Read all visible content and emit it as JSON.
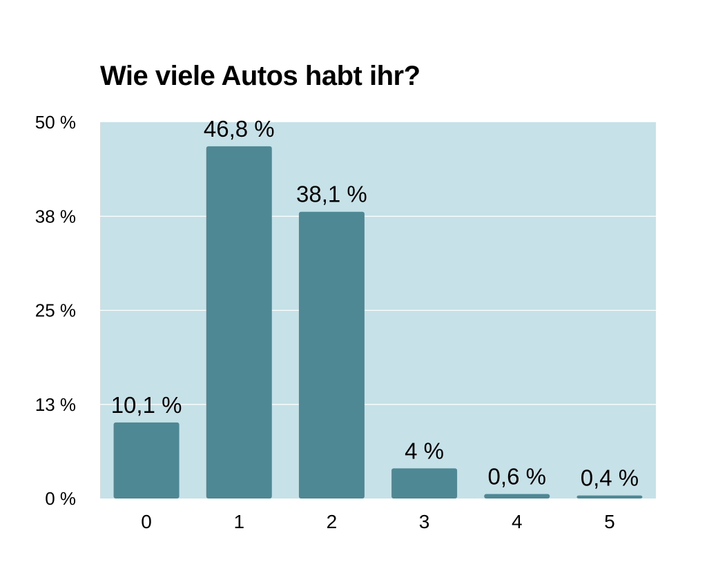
{
  "chart_data": {
    "type": "bar",
    "title": "Wie viele Autos habt ihr?",
    "xlabel": "",
    "ylabel": "",
    "categories": [
      "0",
      "1",
      "2",
      "3",
      "4",
      "5"
    ],
    "values": [
      10.1,
      46.8,
      38.1,
      4,
      0.6,
      0.4
    ],
    "data_labels": [
      "10,1 %",
      "46,8 %",
      "38,1 %",
      "4 %",
      "0,6 %",
      "0,4 %"
    ],
    "ylim": [
      0,
      50
    ],
    "yticks": [
      0,
      12.5,
      25,
      37.5,
      50
    ],
    "ytick_labels": [
      "0 %",
      "13 %",
      "25 %",
      "38 %",
      "50 %"
    ],
    "grid": true,
    "legend": "none",
    "colors": {
      "bar": "#4e8894",
      "plot_background": "#c6e1e7",
      "gridline": "#ffffff"
    }
  }
}
